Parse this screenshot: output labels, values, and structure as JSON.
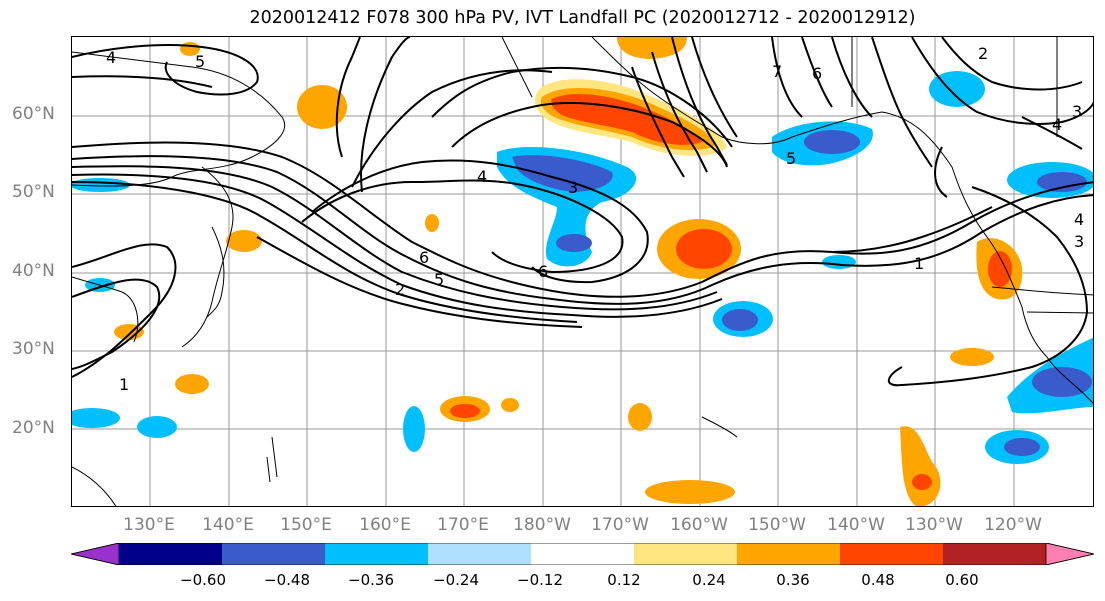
{
  "title": "2020012412 F078 300 hPa PV, IVT Landfall PC (2020012712 - 2020012912)",
  "map": {
    "projection": "PlateCarree",
    "lon_range": [
      120,
      -110
    ],
    "lat_range": [
      10,
      70
    ],
    "lat_labels": [
      "60°N",
      "50°N",
      "40°N",
      "30°N",
      "20°N"
    ],
    "lon_labels": [
      "130°E",
      "140°E",
      "150°E",
      "160°E",
      "170°E",
      "180°W",
      "170°W",
      "160°W",
      "150°W",
      "140°W",
      "130°W",
      "120°W"
    ],
    "gridlines": true,
    "gridline_color": "#999999"
  },
  "pv_contours": {
    "labels": [
      "4",
      "5",
      "3",
      "4",
      "6",
      "5",
      "2",
      "1",
      "6",
      "7",
      "6",
      "5",
      "2",
      "3",
      "4",
      "4",
      "3",
      "1"
    ],
    "color": "#000000"
  },
  "colorbar": {
    "ticks": [
      "−0.60",
      "−0.48",
      "−0.36",
      "−0.24",
      "−0.12",
      "0.12",
      "0.24",
      "0.36",
      "0.48",
      "0.60"
    ],
    "colors": [
      "#9932CC",
      "#00008B",
      "#3A5BCC",
      "#00BFFF",
      "#B0E0FF",
      "#FFFFFF",
      "#FFE680",
      "#FFA500",
      "#FF4500",
      "#B22222",
      "#FF80B0"
    ],
    "extend": "both"
  }
}
